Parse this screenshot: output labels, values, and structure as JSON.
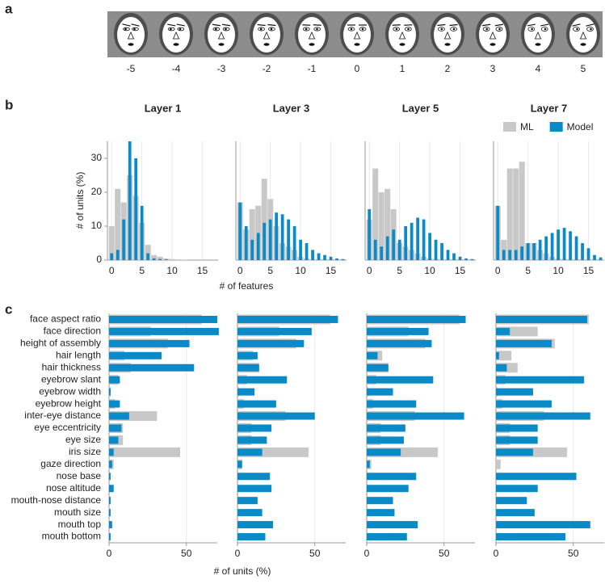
{
  "panels": [
    "a",
    "b",
    "c"
  ],
  "face_strip": {
    "values": [
      -5,
      -4,
      -3,
      -2,
      -1,
      0,
      1,
      2,
      3,
      4,
      5
    ]
  },
  "chart_data": [
    {
      "type": "histogram",
      "title": "Layer 1",
      "ylabel": "# of units (%)",
      "bins": [
        -0.5,
        0.5,
        1.5,
        2.5,
        3.5,
        4.5,
        5.5,
        6.5,
        7.5,
        8.5,
        9.5,
        10.5,
        11.5,
        12.5,
        13.5,
        14.5,
        15.5,
        16.5,
        17.5
      ],
      "xlim": [
        -0.7,
        17.6
      ],
      "ylim": [
        0,
        35
      ],
      "xticks": [
        0,
        5,
        10,
        15
      ],
      "yticks": [
        0,
        10,
        20,
        30
      ],
      "series": [
        {
          "color": "#c8c8c8",
          "values": [
            10,
            21,
            17,
            25,
            19,
            11,
            4.5,
            1.5,
            1,
            0.5,
            0.3,
            0.2,
            0.1,
            0,
            0,
            0,
            0,
            0
          ]
        },
        {
          "color": "#0a8ac6",
          "values": [
            2,
            3,
            12,
            35,
            30,
            16,
            2,
            0.5,
            0.3,
            0.2,
            0,
            0,
            0,
            0,
            0,
            0,
            0,
            0
          ]
        }
      ]
    },
    {
      "type": "histogram",
      "title": "Layer 3",
      "xlabel": "# of features",
      "bins": [
        -0.5,
        0.5,
        1.5,
        2.5,
        3.5,
        4.5,
        5.5,
        6.5,
        7.5,
        8.5,
        9.5,
        10.5,
        11.5,
        12.5,
        13.5,
        14.5,
        15.5,
        16.5,
        17.5
      ],
      "xlim": [
        -0.7,
        17.6
      ],
      "ylim": [
        0,
        35
      ],
      "xticks": [
        0,
        5,
        10,
        15
      ],
      "series": [
        {
          "color": "#c8c8c8",
          "values": [
            17,
            9,
            15,
            16,
            24,
            18,
            10,
            5,
            4,
            3,
            1,
            0.5,
            0.2,
            0,
            0,
            0,
            0,
            0
          ]
        },
        {
          "color": "#0a8ac6",
          "values": [
            17,
            10,
            6,
            8,
            11,
            12,
            14,
            13.5,
            12,
            10,
            6,
            5,
            3,
            2,
            1.5,
            1,
            0.5,
            0.3
          ]
        }
      ]
    },
    {
      "type": "histogram",
      "title": "Layer 5",
      "bins": [
        -0.5,
        0.5,
        1.5,
        2.5,
        3.5,
        4.5,
        5.5,
        6.5,
        7.5,
        8.5,
        9.5,
        10.5,
        11.5,
        12.5,
        13.5,
        14.5,
        15.5,
        16.5,
        17.5
      ],
      "xlim": [
        -0.7,
        17.6
      ],
      "ylim": [
        0,
        35
      ],
      "xticks": [
        0,
        5,
        10,
        15
      ],
      "series": [
        {
          "color": "#c8c8c8",
          "values": [
            12,
            27,
            20,
            21,
            15,
            5,
            4,
            3,
            2,
            1,
            0.5,
            0.3,
            0.2,
            0,
            0,
            0,
            0,
            0
          ]
        },
        {
          "color": "#0a8ac6",
          "values": [
            15,
            6,
            4,
            7,
            9,
            6,
            10,
            11,
            12.5,
            12,
            8,
            6,
            5,
            3,
            2,
            1,
            0.5,
            0.3
          ]
        }
      ]
    },
    {
      "type": "histogram",
      "title": "Layer 7",
      "legend": "upper right",
      "bins": [
        -0.5,
        0.5,
        1.5,
        2.5,
        3.5,
        4.5,
        5.5,
        6.5,
        7.5,
        8.5,
        9.5,
        10.5,
        11.5,
        12.5,
        13.5,
        14.5,
        15.5,
        16.5,
        17.5
      ],
      "xlim": [
        -0.7,
        17.6
      ],
      "ylim": [
        0,
        35
      ],
      "xticks": [
        0,
        5,
        10,
        15
      ],
      "series": [
        {
          "name": "ML",
          "color": "#c8c8c8",
          "values": [
            16,
            6,
            27,
            27,
            29,
            5,
            5,
            3,
            2,
            1,
            0.5,
            0.3,
            0.2,
            0,
            0,
            0,
            0,
            0
          ]
        },
        {
          "name": "Model",
          "color": "#0a8ac6",
          "values": [
            16,
            3,
            3,
            3,
            4,
            5,
            5,
            6,
            7,
            8,
            9,
            9.5,
            8.5,
            7,
            5,
            3.5,
            1.5,
            0.8
          ]
        }
      ]
    },
    {
      "type": "hbar",
      "categories": [
        "face aspect ratio",
        "face direction",
        "height of assembly",
        "hair length",
        "hair thickness",
        "eyebrow slant",
        "eyebrow width",
        "eyebrow height",
        "inter-eye distance",
        "eye eccentricity",
        "eye size",
        "iris size",
        "gaze direction",
        "nose base",
        "nose altitude",
        "mouth-nose distance",
        "mouth size",
        "mouth top",
        "mouth bottom"
      ],
      "xlim": [
        0,
        70
      ],
      "xticks": [
        0,
        50
      ],
      "series": [
        {
          "color": "#c8c8c8",
          "values": [
            60,
            27,
            38,
            10,
            14,
            6,
            1,
            4,
            31,
            9,
            9,
            46,
            3,
            0,
            0,
            0,
            0,
            0,
            0
          ]
        },
        {
          "color": "#0a8ac6",
          "values": [
            70,
            71,
            52,
            34,
            55,
            7,
            1,
            7,
            13,
            8,
            6,
            3,
            2,
            1,
            3,
            1,
            1,
            2,
            1
          ]
        }
      ]
    },
    {
      "type": "hbar",
      "xlabel": "# of units (%)",
      "xlim": [
        0,
        70
      ],
      "xticks": [
        0,
        50
      ],
      "series": [
        {
          "color": "#c8c8c8",
          "values": [
            60,
            27,
            38,
            10,
            14,
            6,
            1,
            4,
            31,
            9,
            9,
            46,
            3,
            0,
            0,
            0,
            0,
            0,
            0
          ]
        },
        {
          "color": "#0a8ac6",
          "values": [
            65,
            48,
            43,
            13,
            14,
            32,
            11,
            25,
            50,
            22,
            19,
            16,
            3,
            21,
            22,
            13,
            16,
            23,
            18
          ]
        }
      ]
    },
    {
      "type": "hbar",
      "xlim": [
        0,
        70
      ],
      "xticks": [
        0,
        50
      ],
      "series": [
        {
          "color": "#c8c8c8",
          "values": [
            60,
            27,
            38,
            10,
            14,
            6,
            1,
            4,
            31,
            9,
            9,
            46,
            3,
            0,
            0,
            0,
            0,
            0,
            0
          ]
        },
        {
          "color": "#0a8ac6",
          "values": [
            64,
            40,
            42,
            7,
            14,
            43,
            17,
            32,
            63,
            25,
            24,
            22,
            2,
            32,
            27,
            17,
            18,
            33,
            26
          ]
        }
      ]
    },
    {
      "type": "hbar",
      "xlim": [
        0,
        70
      ],
      "xticks": [
        0,
        50
      ],
      "series": [
        {
          "color": "#c8c8c8",
          "values": [
            60,
            27,
            38,
            10,
            14,
            6,
            1,
            4,
            31,
            9,
            9,
            46,
            3,
            0,
            0,
            0,
            0,
            0,
            0
          ]
        },
        {
          "color": "#0a8ac6",
          "values": [
            59,
            9,
            36,
            2,
            7,
            57,
            24,
            36,
            61,
            27,
            27,
            24,
            0,
            52,
            27,
            20,
            25,
            61,
            45
          ]
        }
      ]
    }
  ]
}
